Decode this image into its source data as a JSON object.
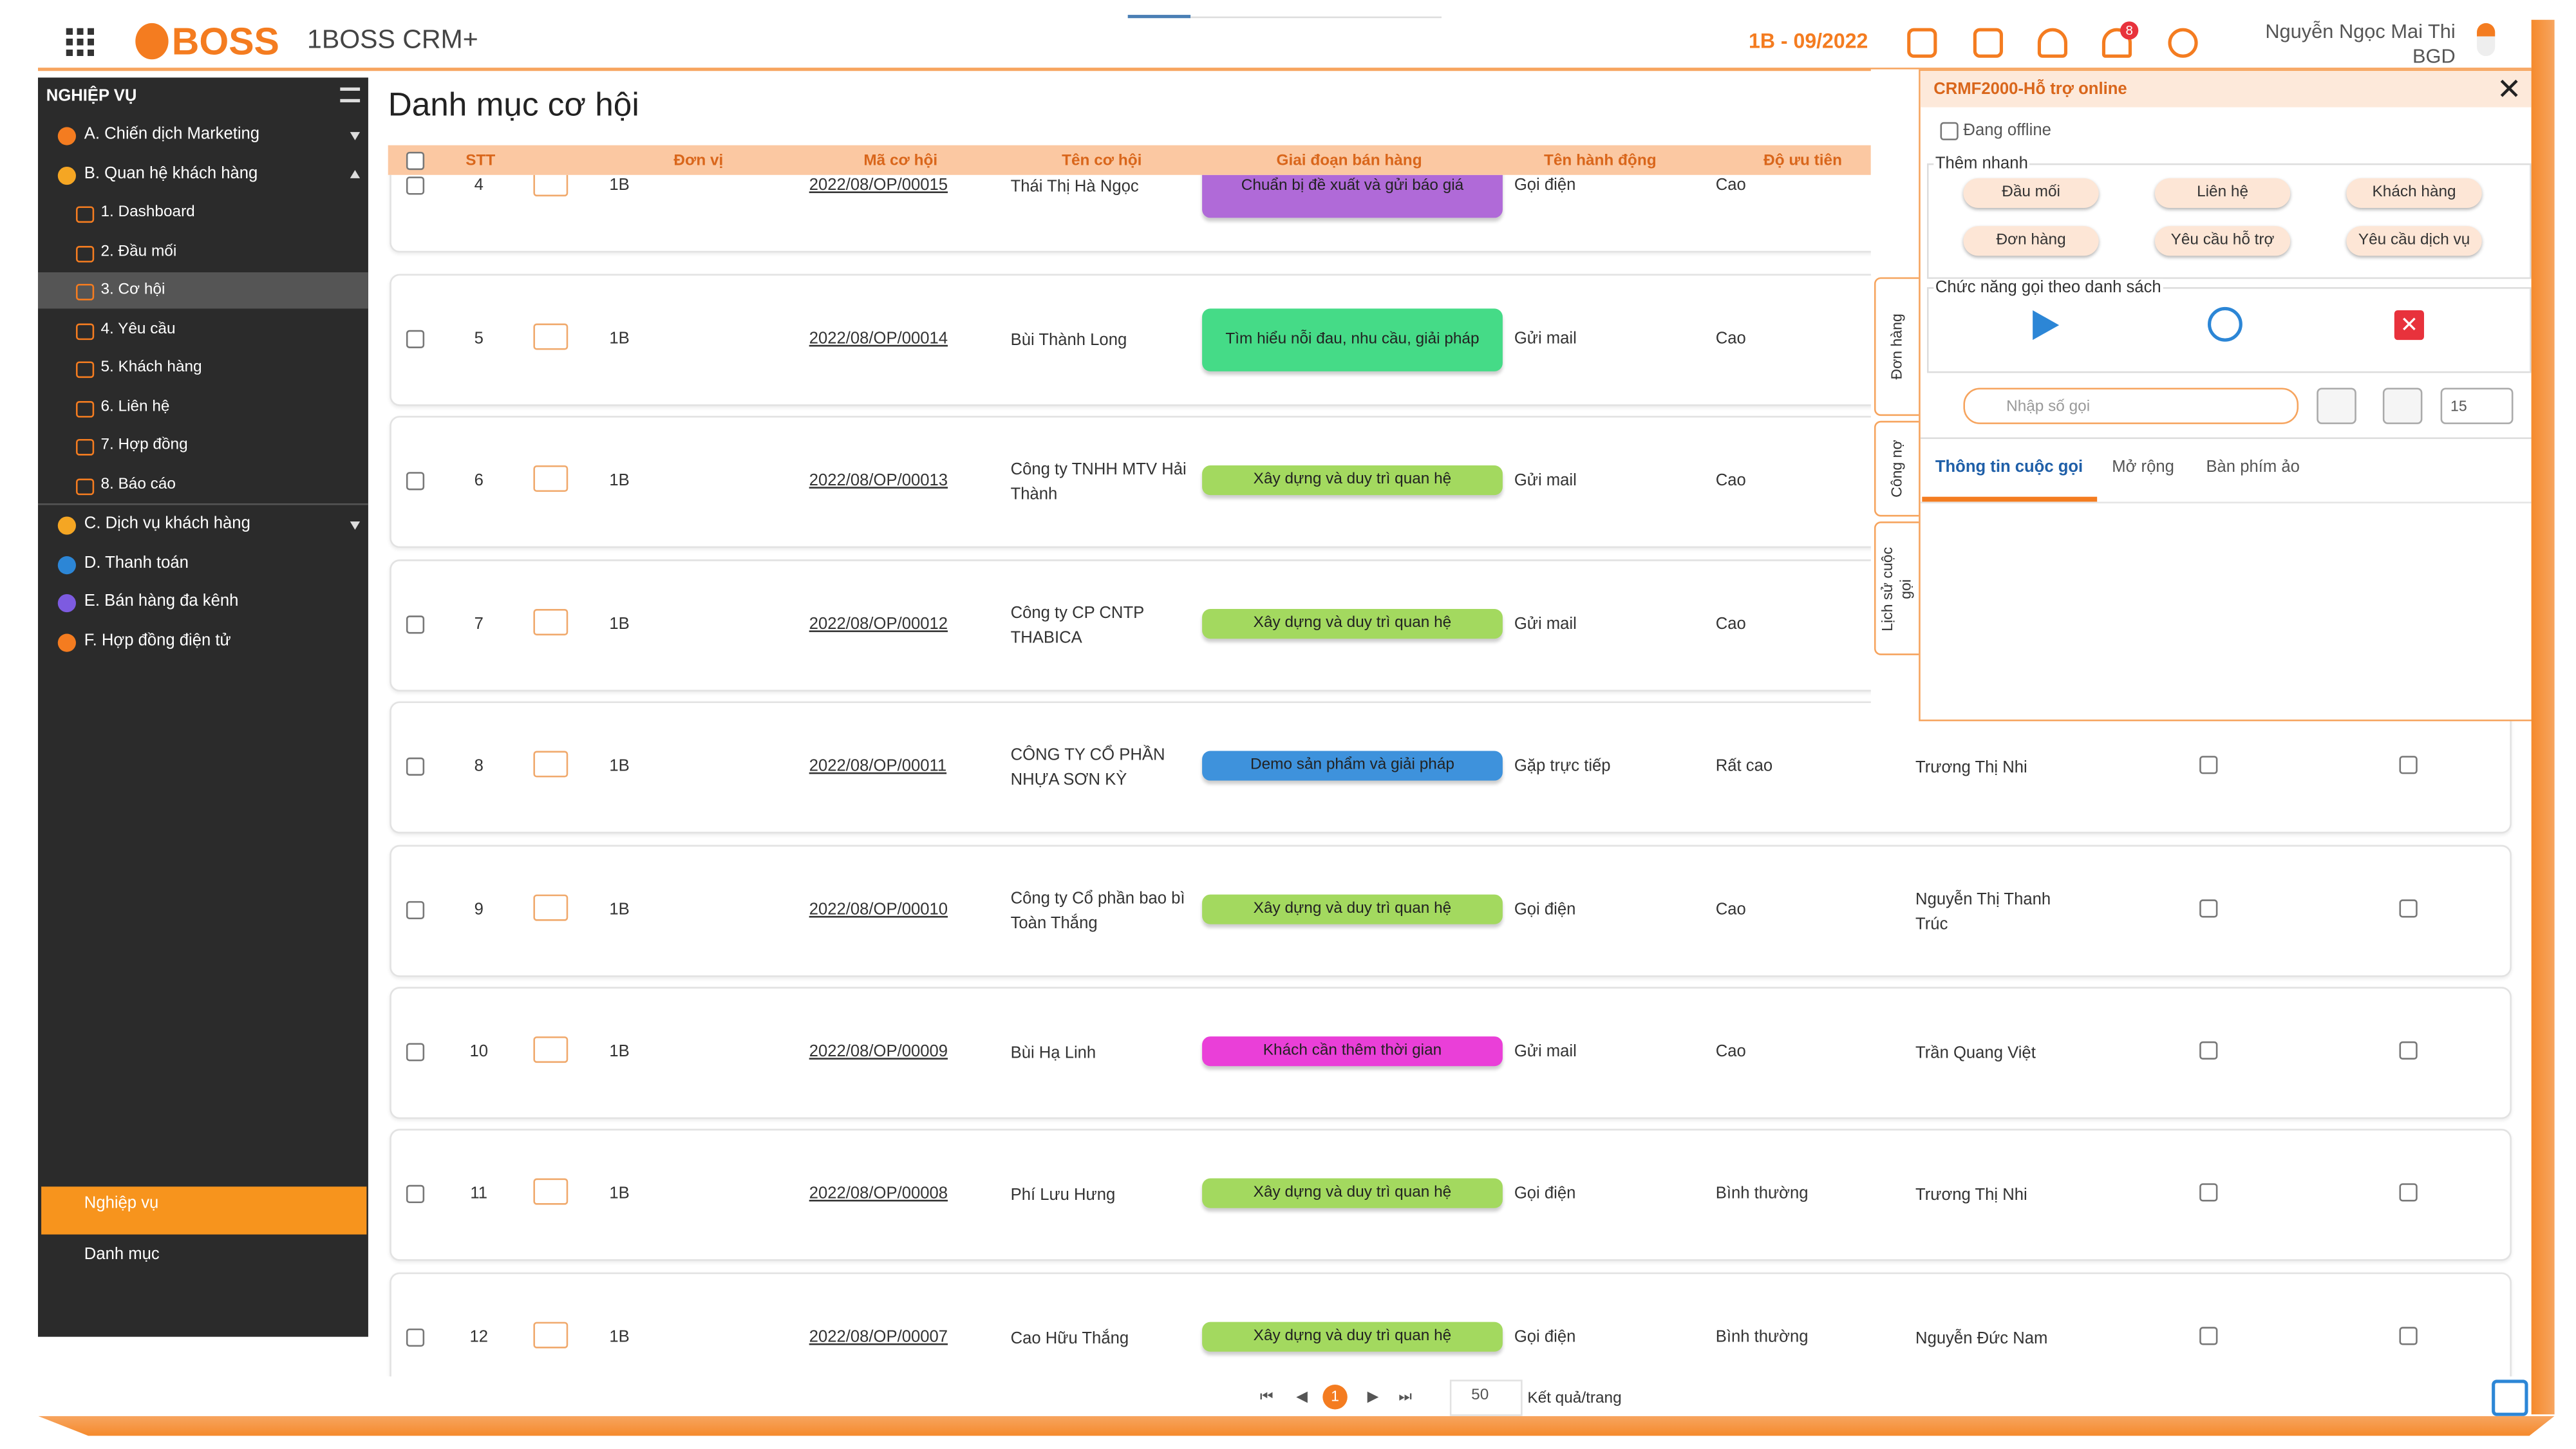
{
  "header": {
    "logo": "BOSS",
    "app_name": "1BOSS CRM+",
    "period": "1B - 09/2022",
    "notification_count": "8",
    "user_name": "Nguyễn Ngọc Mai Thi",
    "user_role": "BGD"
  },
  "sidebar": {
    "section": "NGHIỆP VỤ",
    "items": [
      {
        "label": "A. Chiến dịch Marketing"
      },
      {
        "label": "B. Quan hệ khách hàng",
        "children": [
          "1. Dashboard",
          "2. Đầu mối",
          "3. Cơ hội",
          "4. Yêu cầu",
          "5. Khách hàng",
          "6. Liên hệ",
          "7. Hợp đồng",
          "8. Báo cáo"
        ]
      },
      {
        "label": "C. Dịch vụ khách hàng"
      },
      {
        "label": "D. Thanh toán"
      },
      {
        "label": "E. Bán hàng đa kênh"
      },
      {
        "label": "F. Hợp đồng điện tử"
      }
    ],
    "bottom": [
      "Nghiệp vụ",
      "Danh mục"
    ]
  },
  "page": {
    "title": "Danh mục cơ hội"
  },
  "table": {
    "columns": [
      "STT",
      "Đơn vị",
      "Mã cơ hội",
      "Tên cơ hội",
      "Giai đoạn bán hàng",
      "Tên hành động",
      "Độ ưu tiên"
    ],
    "rows": [
      {
        "stt": "4",
        "unit": "1B",
        "code": "2022/08/OP/00015",
        "name": "Thái Thị Hà Ngọc",
        "stage": "Chuẩn bị đề xuất và gửi báo giá",
        "stage_color": "#b06ad8",
        "action": "Gọi điện",
        "priority": "Cao"
      },
      {
        "stt": "5",
        "unit": "1B",
        "code": "2022/08/OP/00014",
        "name": "Bùi Thành Long",
        "stage": "Tìm hiểu nỗi đau, nhu cầu, giải pháp",
        "stage_color": "#45db87",
        "action": "Gửi mail",
        "priority": "Cao"
      },
      {
        "stt": "6",
        "unit": "1B",
        "code": "2022/08/OP/00013",
        "name": "Công ty TNHH MTV Hải Thành",
        "stage": "Xây dựng và duy trì quan hệ",
        "stage_color": "#a3d95f",
        "action": "Gửi mail",
        "priority": "Cao"
      },
      {
        "stt": "7",
        "unit": "1B",
        "code": "2022/08/OP/00012",
        "name": "Công ty CP CNTP THABICA",
        "stage": "Xây dựng và duy trì quan hệ",
        "stage_color": "#a3d95f",
        "action": "Gửi mail",
        "priority": "Cao"
      },
      {
        "stt": "8",
        "unit": "1B",
        "code": "2022/08/OP/00011",
        "name": "CÔNG TY CỔ PHẦN NHỰA SƠN KỲ",
        "stage": "Demo sản phẩm và giải pháp",
        "stage_color": "#3e92dc",
        "action": "Gặp trực tiếp",
        "priority": "Rất cao",
        "assignee": "Trương Thị Nhi"
      },
      {
        "stt": "9",
        "unit": "1B",
        "code": "2022/08/OP/00010",
        "name": "Công ty Cổ phần bao bì Toàn Thắng",
        "stage": "Xây dựng và duy trì quan hệ",
        "stage_color": "#a3d95f",
        "action": "Gọi điện",
        "priority": "Cao",
        "assignee": "Nguyễn Thị Thanh Trúc"
      },
      {
        "stt": "10",
        "unit": "1B",
        "code": "2022/08/OP/00009",
        "name": "Bùi Hạ Linh",
        "stage": "Khách cần thêm thời gian",
        "stage_color": "#ea3fd8",
        "action": "Gửi mail",
        "priority": "Cao",
        "assignee": "Trần Quang Việt"
      },
      {
        "stt": "11",
        "unit": "1B",
        "code": "2022/08/OP/00008",
        "name": "Phí Lưu Hưng",
        "stage": "Xây dựng và duy trì quan hệ",
        "stage_color": "#a3d95f",
        "action": "Gọi điện",
        "priority": "Bình thường",
        "assignee": "Trương Thị Nhi"
      },
      {
        "stt": "12",
        "unit": "1B",
        "code": "2022/08/OP/00007",
        "name": "Cao Hữu Thắng",
        "stage": "Xây dựng và duy trì quan hệ",
        "stage_color": "#a3d95f",
        "action": "Gọi điện",
        "priority": "Bình thường",
        "assignee": "Nguyễn Đức Nam"
      }
    ]
  },
  "pagination": {
    "current_page": "1",
    "page_size": "50",
    "page_size_label": "Kết quả/trang"
  },
  "panel": {
    "title": "CRMF2000-Hỗ trợ online",
    "status": "Đang offline",
    "quick_add_title": "Thêm nhanh",
    "quick_add_buttons": [
      "Đầu mối",
      "Liên hệ",
      "Khách hàng",
      "Đơn hàng",
      "Yêu cầu hỗ trợ",
      "Yêu cầu dịch vụ"
    ],
    "call_list_title": "Chức năng gọi theo danh sách",
    "phone_placeholder": "Nhập số gọi",
    "count": "15",
    "tabs": [
      "Thông tin cuộc gọi",
      "Mở rộng",
      "Bàn phím ảo"
    ],
    "side_tabs": [
      "Đơn hàng",
      "Công nợ",
      "Lịch sử cuộc gọi"
    ]
  }
}
